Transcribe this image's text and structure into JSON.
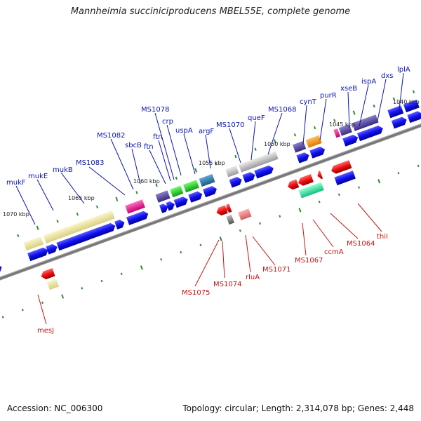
{
  "title": "Mannheimia succiniciproducens MBEL55E, complete genome",
  "footer": {
    "accession": "Accession: NC_006300",
    "stats": "Topology: circular; Length: 2,314,078 bp; Genes: 2,448"
  },
  "colors": {
    "label_top": "#0a14b4",
    "label_bottom": "#c81414",
    "cds_forward": "#0a0ae6",
    "cds_reverse": "#e60000",
    "backbone": "#707070",
    "tick_marks": "#2e8b2e"
  },
  "scale_ticks": [
    "1070 kbp",
    "1065 kbp",
    "1060 kbp",
    "1055 kbp",
    "1050 kbp",
    "1045 kbp",
    "1040 kbp"
  ],
  "genes_top": [
    "mukF",
    "mukE",
    "mukB",
    "MS1083",
    "MS1082",
    "sbcB",
    "ftn",
    "ftn",
    "MS1078",
    "crp",
    "uspA",
    "argF",
    "MS1070",
    "queF",
    "MS1068",
    "cynT",
    "purR",
    "xseB",
    "ispA",
    "dxs",
    "lplA"
  ],
  "genes_bottom": [
    "mesJ",
    "MS1075",
    "MS1074",
    "rluA",
    "MS1071",
    "MS1067",
    "ccmA",
    "MS1064",
    "thiI"
  ]
}
